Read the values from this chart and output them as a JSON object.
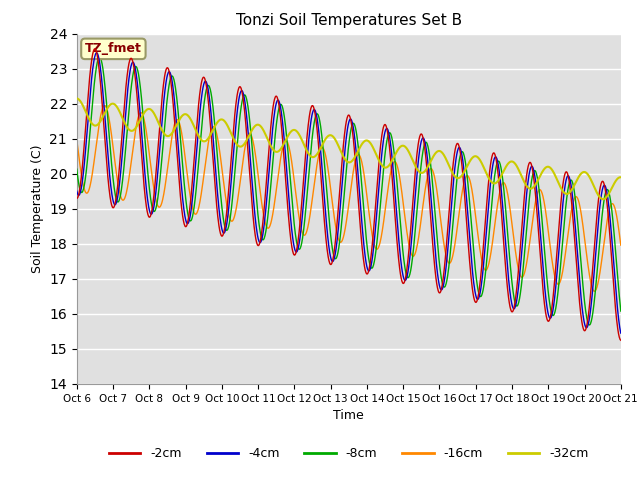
{
  "title": "Tonzi Soil Temperatures Set B",
  "xlabel": "Time",
  "ylabel": "Soil Temperature (C)",
  "ylim": [
    14.0,
    24.0
  ],
  "yticks": [
    14.0,
    15.0,
    16.0,
    17.0,
    18.0,
    19.0,
    20.0,
    21.0,
    22.0,
    23.0,
    24.0
  ],
  "xtick_labels": [
    "Oct 6",
    "Oct 7",
    "Oct 8",
    "Oct 9",
    "Oct 10",
    "Oct 11",
    "Oct 12",
    "Oct 13",
    "Oct 14",
    "Oct 15",
    "Oct 16",
    "Oct 17",
    "Oct 18",
    "Oct 19",
    "Oct 20",
    "Oct 21"
  ],
  "colors": {
    "-2cm": "#cc0000",
    "-4cm": "#0000cc",
    "-8cm": "#00aa00",
    "-16cm": "#ff8800",
    "-32cm": "#cccc00"
  },
  "legend_labels": [
    "-2cm",
    "-4cm",
    "-8cm",
    "-16cm",
    "-32cm"
  ],
  "annotation_text": "TZ_fmet",
  "annotation_bg": "#ffffcc",
  "annotation_border": "#999966",
  "annotation_text_color": "#880000",
  "plot_bg_color": "#e0e0e0",
  "n_points": 1440,
  "n_days": 15
}
